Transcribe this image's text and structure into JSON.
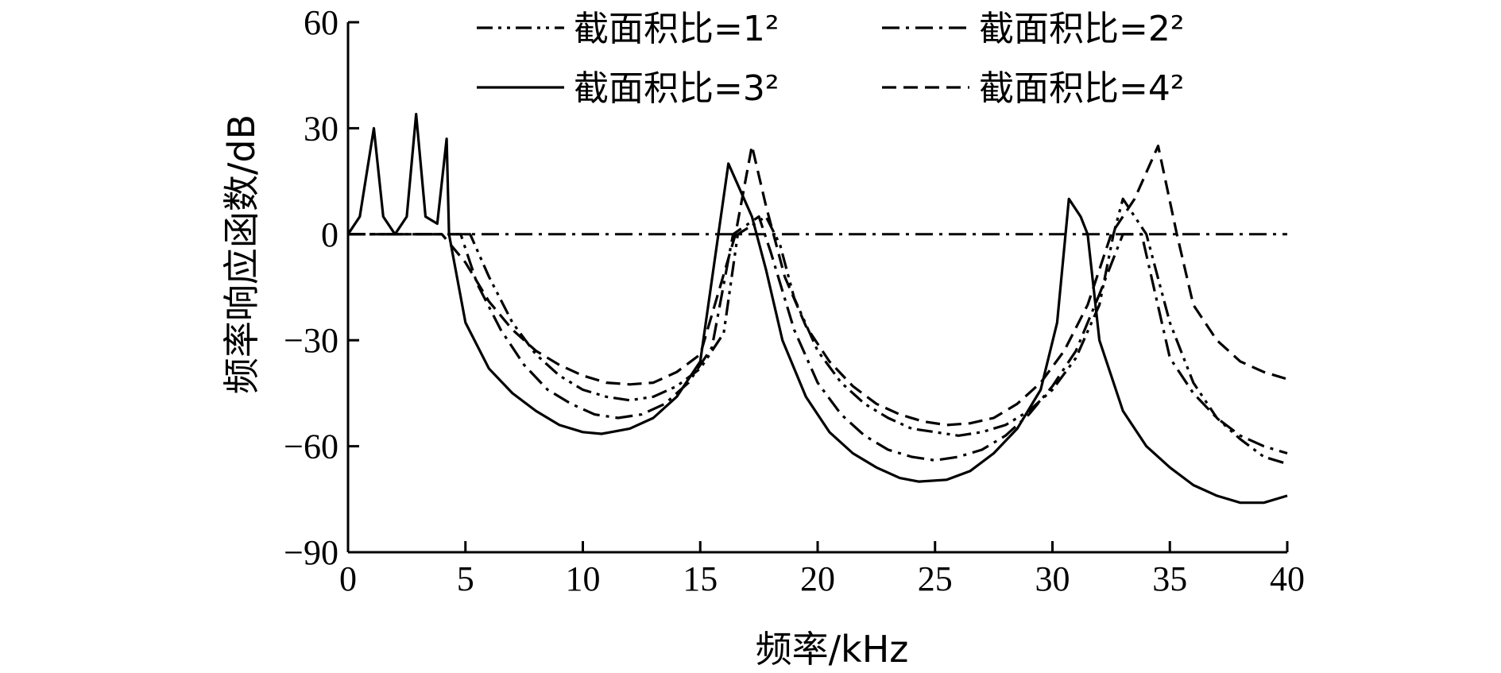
{
  "chart_data": {
    "type": "line",
    "title": "",
    "xlabel": "频率/kHz",
    "ylabel": "频率响应函数/dB",
    "xlim": [
      0,
      40
    ],
    "ylim": [
      -90,
      60
    ],
    "x_ticks": [
      "0",
      "5",
      "10",
      "15",
      "20",
      "25",
      "30",
      "35",
      "40"
    ],
    "y_ticks": [
      "60",
      "30",
      "0",
      "−30",
      "−60",
      "−90"
    ],
    "grid": false,
    "legend_position": "top",
    "series": [
      {
        "name": "截面积比=1²",
        "style": "dashdotdot",
        "x": [
          0,
          5.2,
          6.0,
          7,
          8,
          9,
          10,
          11,
          12,
          13,
          14,
          15,
          16,
          16.6,
          17.8,
          18.4,
          19,
          20,
          21,
          22,
          23,
          24,
          25,
          26,
          27,
          28,
          29,
          30,
          31,
          32,
          32.6,
          33,
          34,
          35,
          36,
          37,
          38,
          39,
          40
        ],
        "y": [
          0,
          0,
          -12,
          -25,
          -34,
          -40,
          -44,
          -46,
          -47,
          -46,
          -43,
          -38,
          -28,
          0,
          5,
          -3,
          -18,
          -33,
          -42,
          -48,
          -52,
          -55,
          -56,
          -57,
          -56,
          -54,
          -50,
          -44,
          -35,
          -20,
          0,
          10,
          0,
          -25,
          -42,
          -52,
          -58,
          -63,
          -65
        ]
      },
      {
        "name": "截面积比=2²",
        "style": "dashdot",
        "x": [
          0,
          4.8,
          5.5,
          6.5,
          7.5,
          8.5,
          9.5,
          10.5,
          11.5,
          12.5,
          13.5,
          14.5,
          15.5,
          16.4,
          17.5,
          18.0,
          19,
          20,
          21,
          22,
          23,
          24,
          25,
          26,
          27,
          28,
          29,
          30,
          31,
          32,
          33,
          33.8,
          35,
          36,
          37,
          38,
          39,
          40
        ],
        "y": [
          0,
          0,
          -14,
          -27,
          -37,
          -44,
          -48,
          -51,
          -52,
          -51,
          -48,
          -42,
          -32,
          0,
          5,
          -5,
          -27,
          -42,
          -51,
          -57,
          -61,
          -63,
          -64,
          -63,
          -61,
          -57,
          -51,
          -43,
          -33,
          -17,
          0,
          0,
          -35,
          -45,
          -52,
          -57,
          -60,
          -62
        ]
      },
      {
        "name": "截面积比=3²",
        "style": "solid",
        "x": [
          0,
          0.5,
          1.1,
          1.5,
          2.0,
          2.5,
          2.9,
          3.3,
          3.8,
          4.2,
          4.3,
          5,
          6,
          7,
          8,
          9,
          10,
          10.8,
          12,
          13,
          14,
          15,
          16.2,
          17.2,
          17.8,
          18.5,
          19.5,
          20.5,
          21.5,
          22.5,
          23.5,
          24.3,
          25.5,
          26.5,
          27.5,
          28.5,
          29.5,
          30.2,
          30.7,
          31.2,
          31.5,
          32,
          33,
          34,
          35,
          36,
          37,
          38,
          39,
          40
        ],
        "y": [
          0,
          5,
          30,
          5,
          0,
          5,
          34,
          5,
          3,
          27,
          0,
          -25,
          -38,
          -45,
          -50,
          -54,
          -56,
          -56.5,
          -55,
          -52,
          -46,
          -36,
          20,
          5,
          -10,
          -30,
          -46,
          -56,
          -62,
          -66,
          -69,
          -70,
          -69.5,
          -67,
          -62,
          -55,
          -44,
          -25,
          10,
          5,
          0,
          -30,
          -50,
          -60,
          -66,
          -71,
          -74,
          -76,
          -76,
          -74
        ]
      },
      {
        "name": "截面积比=4²",
        "style": "dashed",
        "x": [
          0,
          4.0,
          5.0,
          6,
          7,
          8,
          9,
          10,
          11,
          12,
          13,
          14,
          15,
          16.5,
          17.2,
          17.8,
          18.6,
          19.5,
          20.5,
          21.5,
          22.5,
          23.5,
          24.5,
          25.5,
          26.5,
          27.5,
          28.5,
          29.5,
          30.5,
          31.5,
          32.5,
          33.5,
          34.5,
          35.3,
          36,
          37,
          38,
          39,
          40
        ],
        "y": [
          0,
          0,
          -8,
          -19,
          -27,
          -33,
          -37,
          -40,
          -42,
          -42.5,
          -42,
          -39,
          -34,
          0,
          25,
          8,
          -12,
          -26,
          -36,
          -43,
          -48,
          -51,
          -53,
          -54,
          -53.5,
          -52,
          -48,
          -42,
          -33,
          -20,
          0,
          10,
          25,
          0,
          -20,
          -30,
          -36,
          -39,
          -41
        ]
      }
    ]
  }
}
